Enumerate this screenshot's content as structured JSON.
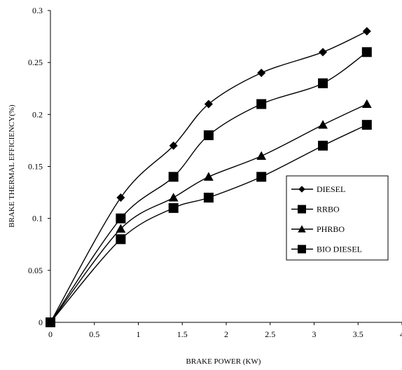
{
  "chart_data": {
    "type": "line",
    "title": "",
    "xlabel": "BRAKE POWER (KW)",
    "ylabel": "BRAKE THERMAL EFFICIENCY(%)",
    "xlim": [
      0,
      4
    ],
    "ylim": [
      0,
      0.3
    ],
    "x_ticks": [
      "0",
      "0.5",
      "1",
      "1.5",
      "2",
      "2.5",
      "3",
      "3.5",
      "4"
    ],
    "y_ticks": [
      "0",
      "0.05",
      "0.1",
      "0.15",
      "0.2",
      "0.25",
      "0.3"
    ],
    "x": [
      0,
      0.8,
      1.4,
      1.8,
      2.4,
      3.1,
      3.6
    ],
    "grid": false,
    "legend_position": "right",
    "series": [
      {
        "name": "DIESEL",
        "marker": "diamond",
        "color": "#000000",
        "values": [
          0,
          0.12,
          0.17,
          0.21,
          0.24,
          0.26,
          0.28
        ]
      },
      {
        "name": "RRBO",
        "marker": "square",
        "color": "#000000",
        "values": [
          0,
          0.1,
          0.14,
          0.18,
          0.21,
          0.23,
          0.26
        ]
      },
      {
        "name": "PHRBO",
        "marker": "triangle",
        "color": "#000000",
        "values": [
          0,
          0.09,
          0.12,
          0.14,
          0.16,
          0.19,
          0.21
        ]
      },
      {
        "name": "BIO DIESEL",
        "marker": "square",
        "color": "#000000",
        "values": [
          0,
          0.08,
          0.11,
          0.12,
          0.14,
          0.17,
          0.19
        ]
      }
    ]
  }
}
